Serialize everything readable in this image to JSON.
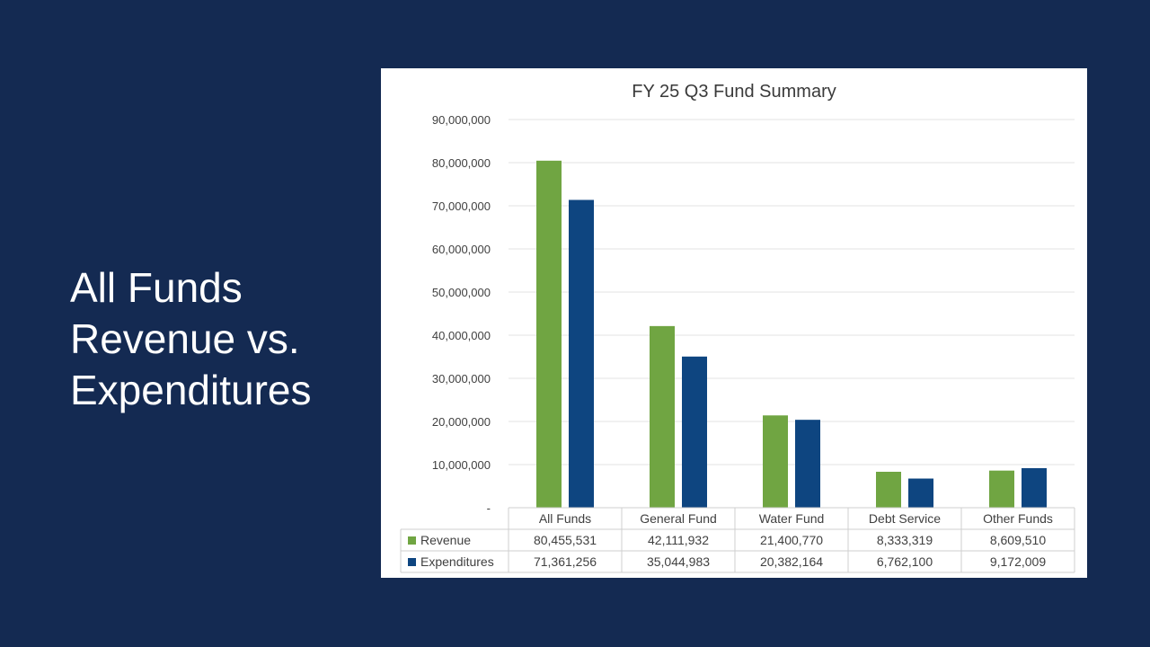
{
  "slide": {
    "title_lines": [
      "All Funds",
      "Revenue vs.",
      "Expenditures"
    ]
  },
  "colors": {
    "background": "#142a52",
    "revenue": "#70a542",
    "expenditures": "#0e4580",
    "grid": "#e3e3e3"
  },
  "chart_data": {
    "type": "bar",
    "title": "FY 25 Q3 Fund Summary",
    "categories": [
      "All Funds",
      "General Fund",
      "Water Fund",
      "Debt Service",
      "Other Funds"
    ],
    "series": [
      {
        "name": "Revenue",
        "values": [
          80455531,
          42111932,
          21400770,
          8333319,
          8609510
        ],
        "display": [
          "80,455,531",
          "42,111,932",
          "21,400,770",
          "8,333,319",
          "8,609,510"
        ]
      },
      {
        "name": "Expenditures",
        "values": [
          71361256,
          35044983,
          20382164,
          6762100,
          9172009
        ],
        "display": [
          "71,361,256",
          "35,044,983",
          "20,382,164",
          "6,762,100",
          "9,172,009"
        ]
      }
    ],
    "y_ticks": [
      "-",
      "10,000,000",
      "20,000,000",
      "30,000,000",
      "40,000,000",
      "50,000,000",
      "60,000,000",
      "70,000,000",
      "80,000,000",
      "90,000,000"
    ],
    "ylim": [
      0,
      90000000
    ],
    "grid": true,
    "legend": "data-table"
  }
}
